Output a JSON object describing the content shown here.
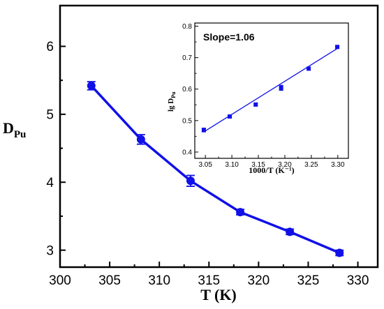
{
  "chart_data": [
    {
      "type": "line",
      "role": "main",
      "xlabel": "T (K)",
      "ylabel_main": "D",
      "ylabel_sub": "Pu",
      "xlim": [
        300,
        332
      ],
      "ylim": [
        2.75,
        6.6
      ],
      "xticks": [
        300,
        305,
        310,
        315,
        320,
        325,
        330
      ],
      "yticks": [
        3,
        4,
        5,
        6
      ],
      "tick_labels_x": [
        "300",
        "305",
        "310",
        "315",
        "320",
        "325",
        "330"
      ],
      "tick_labels_y": [
        "3",
        "4",
        "5",
        "6"
      ],
      "color": "#1010e8",
      "series": [
        {
          "x": [
            303.15,
            308.15,
            313.15,
            318.15,
            323.15,
            328.15
          ],
          "y": [
            5.42,
            4.63,
            4.02,
            3.56,
            3.27,
            2.96
          ],
          "err": [
            0.06,
            0.07,
            0.08,
            0.04,
            0.04,
            0.04
          ]
        }
      ]
    },
    {
      "type": "scatter",
      "role": "inset",
      "annotation": "Slope=1.06",
      "xlabel": "1000/T (K⁻¹)",
      "ylabel_main": "lg D",
      "ylabel_sub": "Pu",
      "xlim": [
        3.03,
        3.32
      ],
      "ylim": [
        0.38,
        0.81
      ],
      "xticks": [
        3.05,
        3.1,
        3.15,
        3.2,
        3.25,
        3.3
      ],
      "yticks": [
        0.4,
        0.5,
        0.6,
        0.7,
        0.8
      ],
      "tick_labels_x": [
        "3.05",
        "3.10",
        "3.15",
        "3.20",
        "3.25",
        "3.30"
      ],
      "tick_labels_y": [
        "0.4",
        "0.5",
        "0.6",
        "0.7",
        "0.8"
      ],
      "color": "#1010e8",
      "series": [
        {
          "x": [
            3.047,
            3.096,
            3.145,
            3.193,
            3.245,
            3.299
          ],
          "y": [
            0.47,
            0.513,
            0.551,
            0.604,
            0.665,
            0.734
          ],
          "err": [
            0.006,
            0.004,
            0.005,
            0.008,
            0.004,
            0.004
          ]
        }
      ],
      "fit_line": {
        "x": [
          3.047,
          3.299
        ],
        "y": [
          0.464,
          0.729
        ]
      }
    }
  ]
}
